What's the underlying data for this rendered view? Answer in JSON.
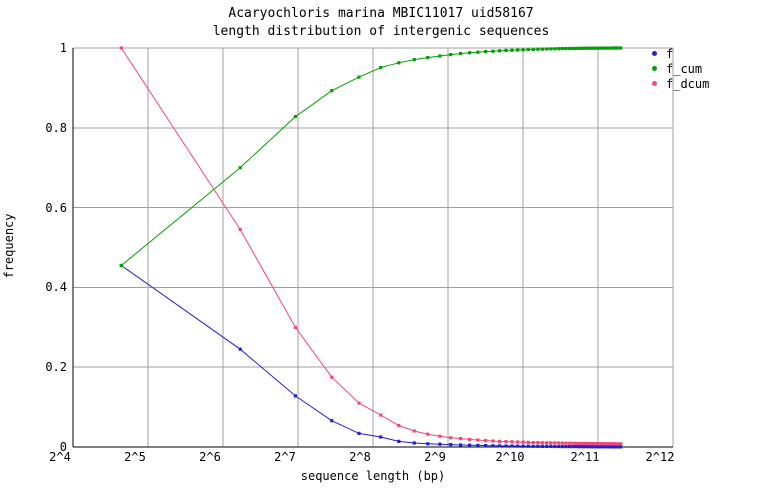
{
  "window": {
    "background": "#ffffff",
    "grid_color": "#a0a0a0",
    "axis_color": "#000000"
  },
  "title": {
    "line1": "Acaryochloris marina MBIC11017 uid58167",
    "line2": "length distribution of intergenic sequences"
  },
  "axes": {
    "x": {
      "label": "sequence length (bp)",
      "ticks": [
        "2^4",
        "2^5",
        "2^6",
        "2^7",
        "2^8",
        "2^9",
        "2^10",
        "2^11",
        "2^12"
      ],
      "scale": "log2"
    },
    "y": {
      "label": "frequency",
      "ticks": [
        "0",
        "0.2",
        "0.4",
        "0.6",
        "0.8",
        "1"
      ],
      "min": 0,
      "max": 1
    }
  },
  "legend": {
    "entries": [
      {
        "label": "f",
        "color": "#2222cc"
      },
      {
        "label": "f_cum",
        "color": "#00a000"
      },
      {
        "label": "f_dcum",
        "color": "#f04878"
      }
    ]
  },
  "chart_data": {
    "type": "line",
    "title": "Acaryochloris marina MBIC11017 uid58167 — length distribution of intergenic sequences",
    "xlabel": "sequence length (bp)",
    "ylabel": "frequency",
    "x_scale": "log2",
    "x_range_bp": [
      16,
      4096
    ],
    "ylim": [
      0,
      1
    ],
    "grid": true,
    "legend_position": "outside-top-right",
    "x_ticks": [
      "2^4",
      "2^5",
      "2^6",
      "2^7",
      "2^8",
      "2^9",
      "2^10",
      "2^11",
      "2^12"
    ],
    "y_ticks": [
      0,
      0.2,
      0.4,
      0.6,
      0.8,
      1
    ],
    "x_bp": [
      25,
      75,
      125,
      175,
      225,
      275,
      325,
      375,
      425,
      475,
      525,
      575,
      625,
      675,
      725,
      775,
      825,
      875,
      925,
      975,
      1025,
      1075,
      1125,
      1175,
      1225,
      1275,
      1325,
      1375,
      1425,
      1475,
      1525,
      1575,
      1625,
      1675,
      1725,
      1775,
      1825,
      1875,
      1925,
      1975,
      2025,
      2075,
      2125,
      2175,
      2225,
      2275,
      2325,
      2375,
      2425,
      2475,
      2525
    ],
    "series": [
      {
        "name": "f",
        "color": "#2222cc",
        "values": [
          0.455,
          0.245,
          0.128,
          0.066,
          0.034,
          0.025,
          0.014,
          0.01,
          0.008,
          0.007,
          0.006,
          0.005,
          0.0045,
          0.004,
          0.0035,
          0.003,
          0.0028,
          0.0026,
          0.0024,
          0.0022,
          0.002,
          0.0019,
          0.0018,
          0.0017,
          0.0016,
          0.0015,
          0.0014,
          0.0013,
          0.0012,
          0.0011,
          0.001,
          0.001,
          0.0009,
          0.0009,
          0.0008,
          0.0008,
          0.0007,
          0.0007,
          0.0006,
          0.0006,
          0.0005,
          0.0005,
          0.0005,
          0.0004,
          0.0004,
          0.0004,
          0.0003,
          0.0003,
          0.0003,
          0.0003,
          0.0003
        ]
      },
      {
        "name": "f_cum",
        "color": "#00a000",
        "values": [
          0.455,
          0.7,
          0.828,
          0.893,
          0.927,
          0.951,
          0.963,
          0.971,
          0.976,
          0.98,
          0.9835,
          0.986,
          0.988,
          0.9895,
          0.991,
          0.992,
          0.993,
          0.994,
          0.9945,
          0.995,
          0.9955,
          0.996,
          0.9965,
          0.997,
          0.9972,
          0.9975,
          0.9978,
          0.998,
          0.9983,
          0.9985,
          0.9987,
          0.9988,
          0.999,
          0.9991,
          0.9992,
          0.9993,
          0.9994,
          0.9995,
          0.9995,
          0.9996,
          0.9996,
          0.9997,
          0.9997,
          0.9998,
          0.9998,
          0.9998,
          0.9999,
          0.9999,
          0.9999,
          1.0,
          1.0
        ]
      },
      {
        "name": "f_dcum",
        "color": "#f04878",
        "values": [
          1.0,
          0.545,
          0.3,
          0.175,
          0.11,
          0.08,
          0.054,
          0.04,
          0.032,
          0.027,
          0.023,
          0.021,
          0.019,
          0.0175,
          0.016,
          0.015,
          0.014,
          0.0135,
          0.013,
          0.0125,
          0.012,
          0.0115,
          0.0112,
          0.011,
          0.0108,
          0.0106,
          0.0104,
          0.0102,
          0.01,
          0.0098,
          0.0096,
          0.0095,
          0.0093,
          0.0092,
          0.0091,
          0.009,
          0.0089,
          0.0088,
          0.0087,
          0.0086,
          0.0085,
          0.0084,
          0.0084,
          0.0083,
          0.0083,
          0.0082,
          0.0082,
          0.0081,
          0.0081,
          0.008,
          0.008
        ]
      }
    ]
  }
}
